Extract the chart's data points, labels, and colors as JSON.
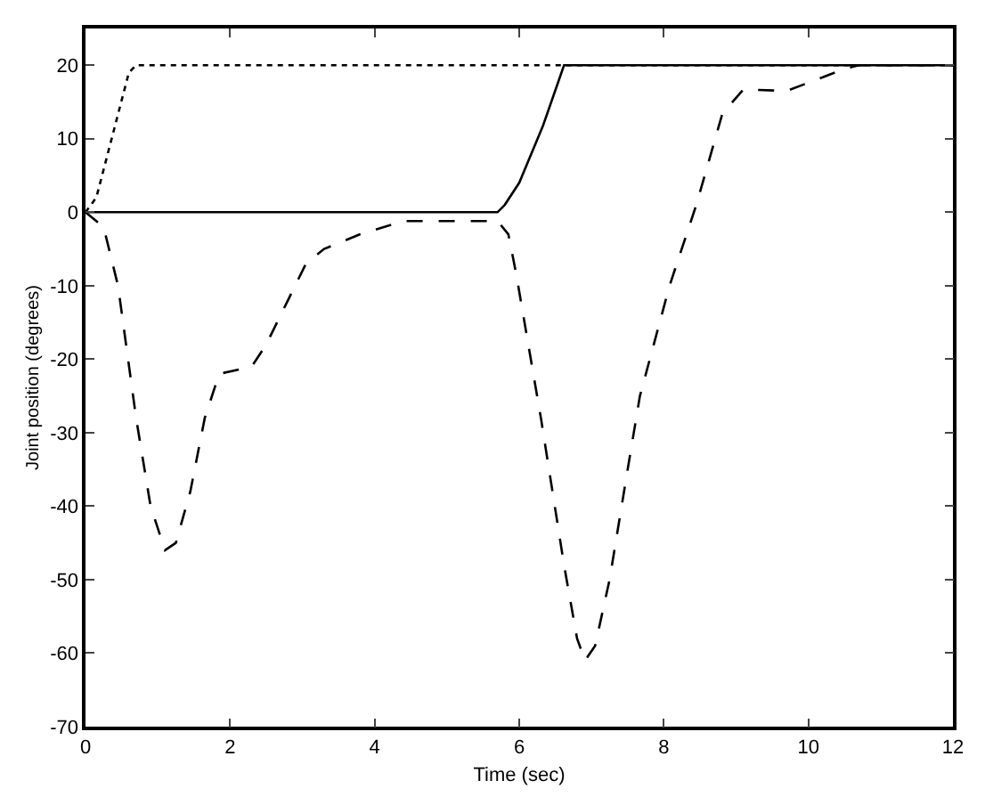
{
  "chart_data": {
    "type": "line",
    "xlabel": "Time (sec)",
    "ylabel": "Joint position (degrees)",
    "xlim": [
      0,
      12
    ],
    "ylim": [
      -70,
      25
    ],
    "xticks": [
      0,
      2,
      4,
      6,
      8,
      10,
      12
    ],
    "yticks": [
      -70,
      -60,
      -50,
      -40,
      -30,
      -20,
      -10,
      0,
      10,
      20
    ],
    "grid": false,
    "marker": "none",
    "series": [
      {
        "color": "#000000",
        "line_style": "solid",
        "x": [
          0,
          5.7,
          5.8,
          6.0,
          6.33,
          6.62,
          12
        ],
        "values": [
          0,
          0,
          1,
          4,
          11.8,
          20,
          20
        ]
      },
      {
        "color": "#000000",
        "line_style": "dotted",
        "x": [
          0,
          0.15,
          0.6,
          0.7,
          12
        ],
        "values": [
          0,
          2,
          19,
          20,
          20
        ]
      },
      {
        "color": "#000000",
        "line_style": "dashed",
        "x": [
          0,
          0.25,
          0.45,
          0.7,
          0.9,
          1.1,
          1.25,
          1.45,
          1.65,
          1.85,
          2.3,
          2.5,
          2.8,
          3.05,
          3.3,
          3.8,
          4.4,
          5.7,
          5.85,
          5.96,
          6.3,
          6.62,
          6.8,
          6.91,
          7.05,
          7.25,
          7.5,
          7.67,
          8.08,
          8.45,
          8.81,
          9.1,
          9.7,
          10.1,
          10.5,
          10.7,
          12
        ],
        "values": [
          0,
          -2,
          -10,
          -28,
          -40,
          -46,
          -45,
          -38,
          -28,
          -22,
          -21,
          -18,
          -12,
          -7,
          -5,
          -3,
          -1.2,
          -1.2,
          -3,
          -8.5,
          -28,
          -48,
          -58,
          -61,
          -59,
          -50,
          -35,
          -25,
          -10,
          1,
          13.4,
          16.7,
          16.5,
          18,
          19.5,
          20,
          20
        ]
      }
    ]
  }
}
